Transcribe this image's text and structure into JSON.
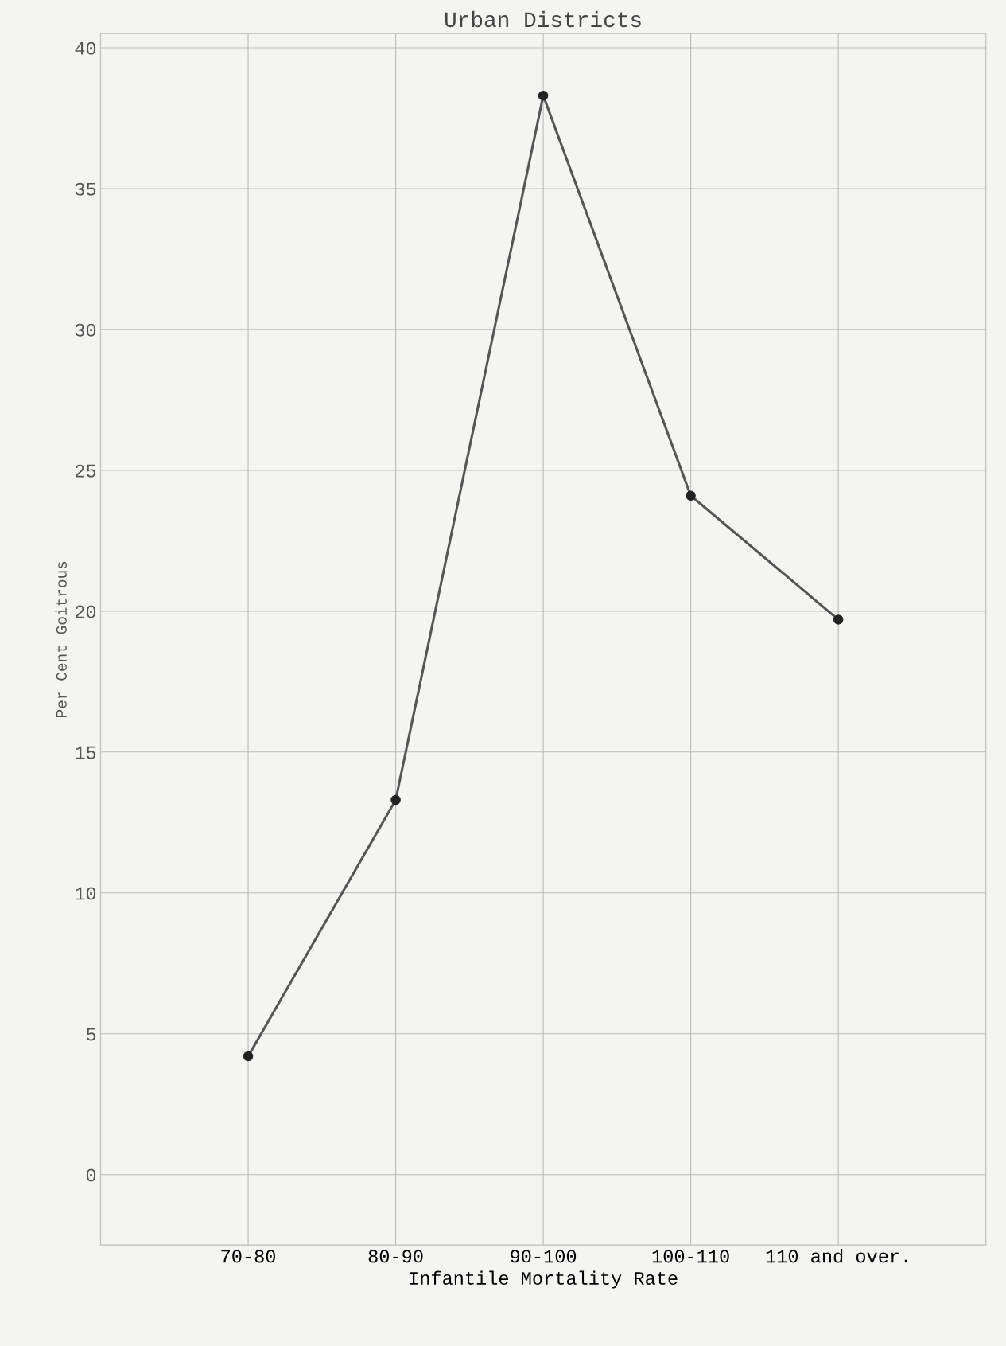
{
  "chart_data": {
    "type": "line",
    "title": "Urban Districts",
    "xlabel": "Infantile Mortality Rate",
    "ylabel": "Per Cent Goitrous",
    "categories": [
      "70-80",
      "80-90",
      "90-100",
      "100-110",
      "110 and over."
    ],
    "series": [
      {
        "color": "#555555",
        "values": [
          4.2,
          13.3,
          38.3,
          24.1,
          19.7
        ]
      }
    ],
    "ylim": [
      -2.5,
      40.5
    ],
    "yticks": [
      0,
      5,
      10,
      15,
      20,
      25,
      30,
      35,
      40
    ],
    "grid": true,
    "marker": "circle",
    "line_style": "solid",
    "legend": false
  }
}
